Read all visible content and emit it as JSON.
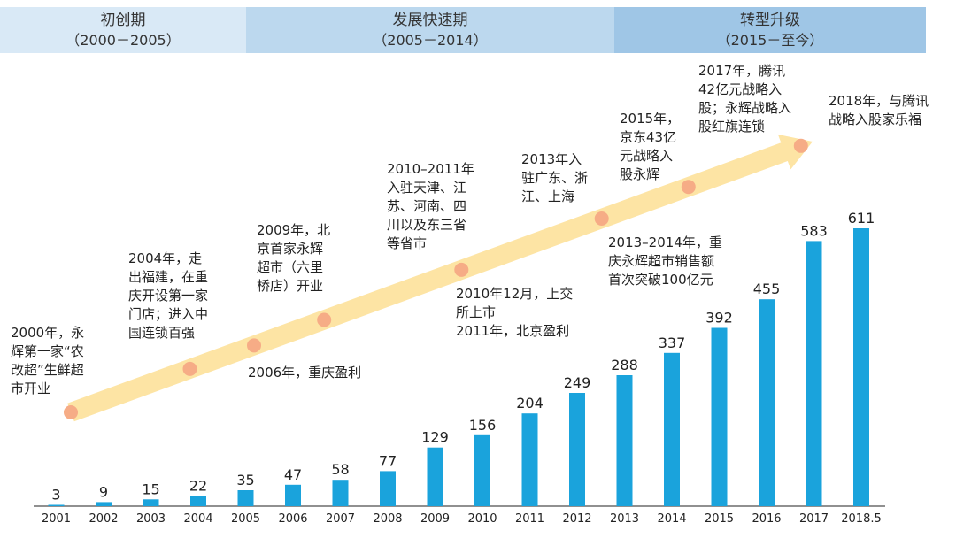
{
  "phases": [
    {
      "name": "初创期",
      "range": "（2000－2005）",
      "color": "#d9e9f6"
    },
    {
      "name": "发展快速期",
      "range": "（2005－2014）",
      "color": "#bcd8ee"
    },
    {
      "name": "转型升级",
      "range": "（2015－至今）",
      "color": "#9fc6e6"
    }
  ],
  "colors": {
    "bar": "#1aa3dc",
    "arrow": "#fde4a4",
    "dot": "#f6ac86",
    "axis": "#222222"
  },
  "chart_data": {
    "type": "bar",
    "title": "",
    "xlabel": "",
    "ylabel": "",
    "categories": [
      "2001",
      "2002",
      "2003",
      "2004",
      "2005",
      "2006",
      "2007",
      "2008",
      "2009",
      "2010",
      "2011",
      "2012",
      "2013",
      "2014",
      "2015",
      "2016",
      "2017",
      "2018.5"
    ],
    "values": [
      3,
      9,
      15,
      22,
      35,
      47,
      58,
      77,
      129,
      156,
      204,
      249,
      288,
      337,
      392,
      455,
      583,
      611
    ],
    "ylim": [
      0,
      611
    ]
  },
  "annotations": [
    {
      "id": "a2000",
      "text": "2000年，永\n辉第一家“农\n改超”生鲜超\n市开业"
    },
    {
      "id": "a2004",
      "text": "2004年，走\n出福建，在重\n庆开设第一家\n门店；进入中\n国连锁百强"
    },
    {
      "id": "a2006",
      "text": "2006年，重庆盈利"
    },
    {
      "id": "a2009",
      "text": "2009年，北\n京首家永辉\n超市（六里\n桥店）开业"
    },
    {
      "id": "a2010_11",
      "text": "2010–2011年\n入驻天津、江\n苏、河南、四\n川以及东三省\n等省市"
    },
    {
      "id": "a2010_12",
      "text": "2010年12月，上交\n所上市\n2011年，北京盈利"
    },
    {
      "id": "a2013",
      "text": "2013年入\n驻广东、浙\n江、上海"
    },
    {
      "id": "a2013_14",
      "text": "2013–2014年，重\n庆永辉超市销售额\n首次突破100亿元"
    },
    {
      "id": "a2015",
      "text": "2015年，\n京东43亿\n元战略入\n股永辉"
    },
    {
      "id": "a2017",
      "text": "2017年，腾讯\n42亿元战略入\n股；永辉战略入\n股红旗连锁"
    },
    {
      "id": "a2018",
      "text": "2018年，与腾讯\n战略入股家乐福"
    }
  ]
}
